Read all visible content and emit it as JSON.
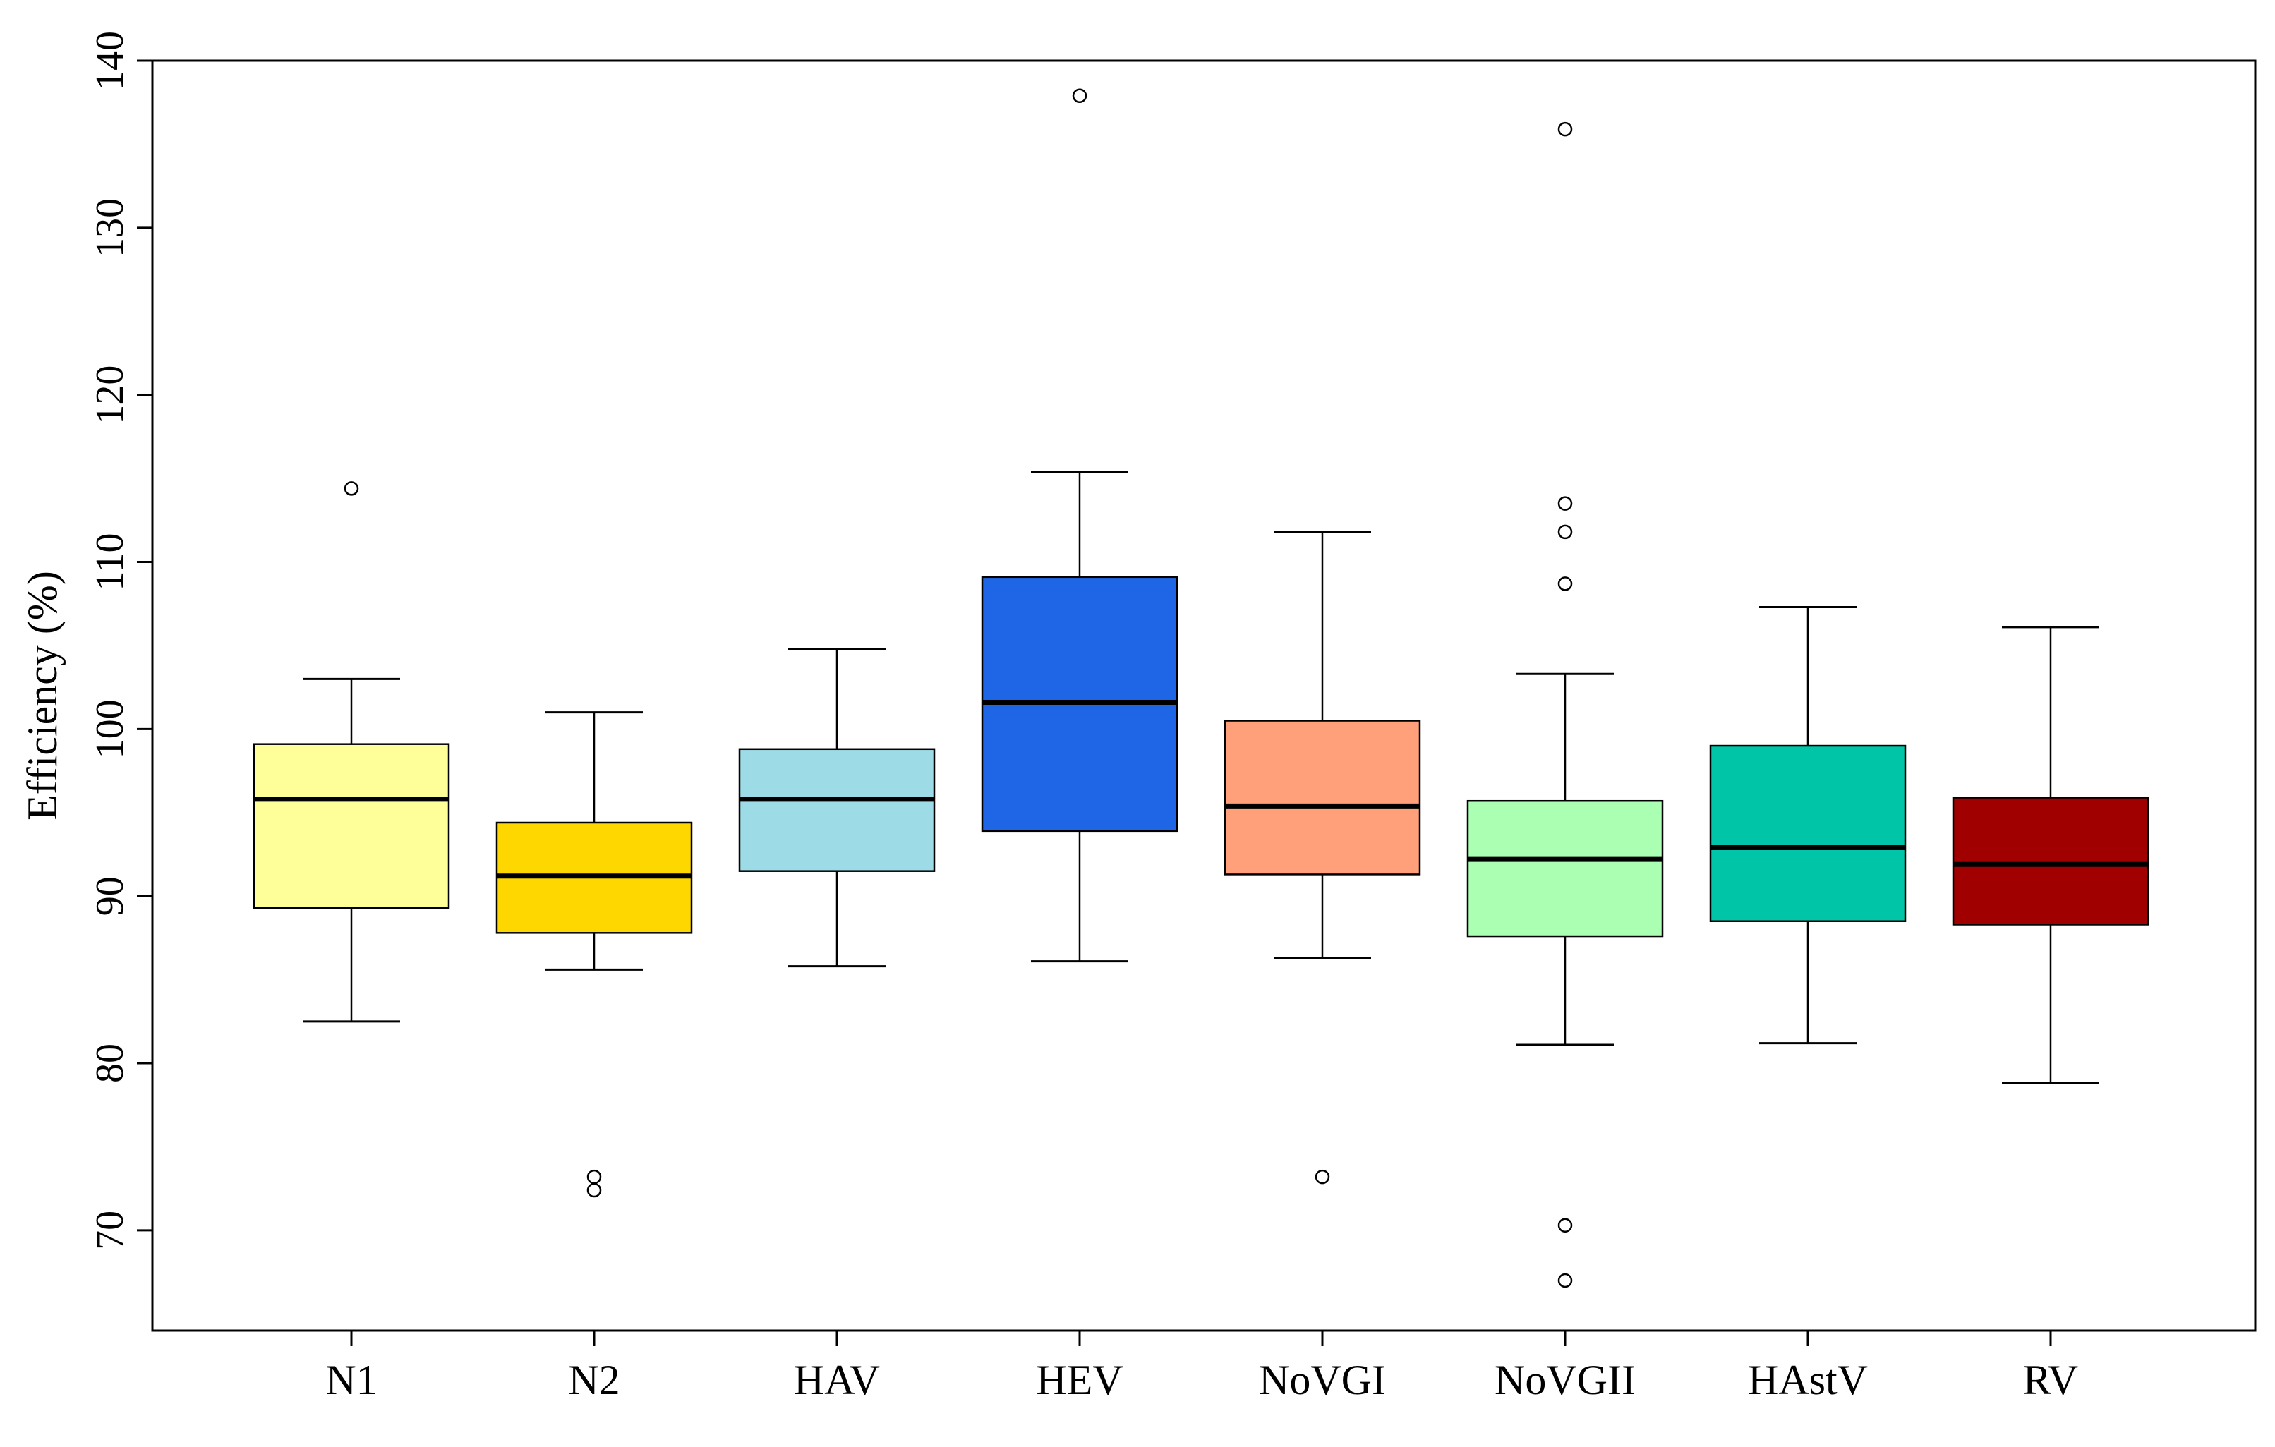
{
  "chart_data": {
    "type": "boxplot",
    "title": "",
    "xlabel": "",
    "ylabel": "Efficiency (%)",
    "ylim": [
      64,
      140
    ],
    "yticks": [
      70,
      80,
      90,
      100,
      110,
      120,
      130,
      140
    ],
    "ytick_labels": [
      "70",
      "80",
      "90",
      "100",
      "110",
      "120",
      "130",
      "140"
    ],
    "grid": false,
    "legend": "none",
    "categories": [
      "N1",
      "N2",
      "HAV",
      "HEV",
      "NoVGI",
      "NoVGII",
      "HAstV",
      "RV"
    ],
    "boxes": [
      {
        "name": "N1",
        "whisker_low": 82.5,
        "q1": 89.3,
        "median": 95.8,
        "q3": 99.1,
        "whisker_high": 103.0,
        "outliers": [
          114.4
        ],
        "color": "#FFFF99"
      },
      {
        "name": "N2",
        "whisker_low": 85.6,
        "q1": 87.8,
        "median": 91.2,
        "q3": 94.4,
        "whisker_high": 101.0,
        "outliers": [
          73.2,
          72.4
        ],
        "color": "#FFD700"
      },
      {
        "name": "HAV",
        "whisker_low": 85.8,
        "q1": 91.5,
        "median": 95.8,
        "q3": 98.8,
        "whisker_high": 104.8,
        "outliers": [],
        "color": "#9DDBE6"
      },
      {
        "name": "HEV",
        "whisker_low": 86.1,
        "q1": 93.9,
        "median": 101.6,
        "q3": 109.1,
        "whisker_high": 115.4,
        "outliers": [
          137.9
        ],
        "color": "#1E66E6"
      },
      {
        "name": "NoVGI",
        "whisker_low": 86.3,
        "q1": 91.3,
        "median": 95.4,
        "q3": 100.5,
        "whisker_high": 111.8,
        "outliers": [
          73.2
        ],
        "color": "#FFA07A"
      },
      {
        "name": "NoVGII",
        "whisker_low": 81.1,
        "q1": 87.6,
        "median": 92.2,
        "q3": 95.7,
        "whisker_high": 103.3,
        "outliers": [
          135.9,
          113.5,
          111.8,
          108.7,
          70.3,
          67.0
        ],
        "color": "#AAFFB2"
      },
      {
        "name": "HAstV",
        "whisker_low": 81.2,
        "q1": 88.5,
        "median": 92.9,
        "q3": 99.0,
        "whisker_high": 107.3,
        "outliers": [],
        "color": "#00C5A6"
      },
      {
        "name": "RV",
        "whisker_low": 78.8,
        "q1": 88.3,
        "median": 91.9,
        "q3": 95.9,
        "whisker_high": 106.1,
        "outliers": [],
        "color": "#A00000"
      }
    ]
  }
}
